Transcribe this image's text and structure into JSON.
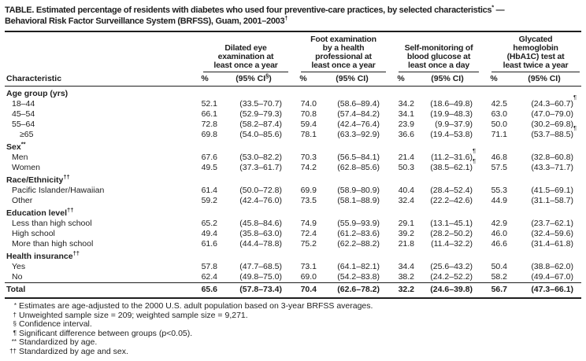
{
  "title": {
    "line1_text": "TABLE. Estimated percentage of residents with diabetes who used four preventive-care practices, by selected characteristics",
    "line1_sup": "*",
    "line1_tail": " —",
    "line2_text": "Behavioral Risk Factor Surveillance System (BRFSS), Guam, 2001–2003",
    "line2_sup": "†"
  },
  "characteristic_label": "Characteristic",
  "columns": [
    {
      "title": "Dilated eye\nexamination at\nleast once a year",
      "pct": "%",
      "ci_pre": "(95% CI",
      "ci_sup": "§",
      "ci_post": ")"
    },
    {
      "title": "Foot examination\nby a health\nprofessional at\nleast once a year",
      "pct": "%",
      "ci_pre": "(95% CI",
      "ci_sup": "",
      "ci_post": ")"
    },
    {
      "title": "Self-monitoring of\nblood glucose at\nleast once a day",
      "pct": "%",
      "ci_pre": "(95% CI",
      "ci_sup": "",
      "ci_post": ")"
    },
    {
      "title": "Glycated\nhemoglobin\n(HbA1C) test at\nleast twice a year",
      "pct": "%",
      "ci_pre": "(95% CI",
      "ci_sup": "",
      "ci_post": ")"
    }
  ],
  "rows": [
    {
      "type": "section",
      "label": "Age group (yrs)",
      "sup": ""
    },
    {
      "type": "data",
      "indent": 1,
      "label": "18–44",
      "values": [
        {
          "p": "52.1",
          "c": "(33.5–70.7)",
          "s": ""
        },
        {
          "p": "74.0",
          "c": "(58.6–89.4)",
          "s": ""
        },
        {
          "p": "34.2",
          "c": "(18.6–49.8)",
          "s": ""
        },
        {
          "p": "42.5",
          "c": "(24.3–60.7)",
          "s": "¶"
        }
      ]
    },
    {
      "type": "data",
      "indent": 1,
      "label": "45–54",
      "values": [
        {
          "p": "66.1",
          "c": "(52.9–79.3)",
          "s": ""
        },
        {
          "p": "70.8",
          "c": "(57.4–84.2)",
          "s": ""
        },
        {
          "p": "34.1",
          "c": "(19.9–48.3)",
          "s": ""
        },
        {
          "p": "63.0",
          "c": "(47.0–79.0)",
          "s": ""
        }
      ]
    },
    {
      "type": "data",
      "indent": 1,
      "label": "55–64",
      "values": [
        {
          "p": "72.8",
          "c": "(58.2–87.4)",
          "s": ""
        },
        {
          "p": "59.4",
          "c": "(42.4–76.4)",
          "s": ""
        },
        {
          "p": "23.9",
          "c": "(9.9–37.9)",
          "s": ""
        },
        {
          "p": "50.0",
          "c": "(30.2–69.8)",
          "s": ""
        }
      ]
    },
    {
      "type": "data",
      "indent": 2,
      "label": "≥65",
      "values": [
        {
          "p": "69.8",
          "c": "(54.0–85.6)",
          "s": ""
        },
        {
          "p": "78.1",
          "c": "(63.3–92.9)",
          "s": ""
        },
        {
          "p": "36.6",
          "c": "(19.4–53.8)",
          "s": ""
        },
        {
          "p": "71.1",
          "c": "(53.7–88.5)",
          "s": "¶"
        }
      ]
    },
    {
      "type": "section",
      "label": "Sex",
      "sup": "**"
    },
    {
      "type": "data",
      "indent": 1,
      "label": "Men",
      "values": [
        {
          "p": "67.6",
          "c": "(53.0–82.2)",
          "s": ""
        },
        {
          "p": "70.3",
          "c": "(56.5–84.1)",
          "s": ""
        },
        {
          "p": "21.4",
          "c": "(11.2–31.6)",
          "s": "¶"
        },
        {
          "p": "46.8",
          "c": "(32.8–60.8)",
          "s": ""
        }
      ]
    },
    {
      "type": "data",
      "indent": 1,
      "label": "Women",
      "values": [
        {
          "p": "49.5",
          "c": "(37.3–61.7)",
          "s": ""
        },
        {
          "p": "74.2",
          "c": "(62.8–85.6)",
          "s": ""
        },
        {
          "p": "50.3",
          "c": "(38.5–62.1)",
          "s": "¶"
        },
        {
          "p": "57.5",
          "c": "(43.3–71.7)",
          "s": ""
        }
      ]
    },
    {
      "type": "section",
      "label": "Race/Ethnicity",
      "sup": "††"
    },
    {
      "type": "data",
      "indent": 1,
      "label": "Pacific Islander/Hawaiian",
      "values": [
        {
          "p": "61.4",
          "c": "(50.0–72.8)",
          "s": ""
        },
        {
          "p": "69.9",
          "c": "(58.9–80.9)",
          "s": ""
        },
        {
          "p": "40.4",
          "c": "(28.4–52.4)",
          "s": ""
        },
        {
          "p": "55.3",
          "c": "(41.5–69.1)",
          "s": ""
        }
      ]
    },
    {
      "type": "data",
      "indent": 1,
      "label": "Other",
      "values": [
        {
          "p": "59.2",
          "c": "(42.4–76.0)",
          "s": ""
        },
        {
          "p": "73.5",
          "c": "(58.1–88.9)",
          "s": ""
        },
        {
          "p": "32.4",
          "c": "(22.2–42.6)",
          "s": ""
        },
        {
          "p": "44.9",
          "c": "(31.1–58.7)",
          "s": ""
        }
      ]
    },
    {
      "type": "section",
      "label": "Education level",
      "sup": "††"
    },
    {
      "type": "data",
      "indent": 1,
      "label": "Less than high school",
      "values": [
        {
          "p": "65.2",
          "c": "(45.8–84.6)",
          "s": ""
        },
        {
          "p": "74.9",
          "c": "(55.9–93.9)",
          "s": ""
        },
        {
          "p": "29.1",
          "c": "(13.1–45.1)",
          "s": ""
        },
        {
          "p": "42.9",
          "c": "(23.7–62.1)",
          "s": ""
        }
      ]
    },
    {
      "type": "data",
      "indent": 1,
      "label": "High school",
      "values": [
        {
          "p": "49.4",
          "c": "(35.8–63.0)",
          "s": ""
        },
        {
          "p": "72.4",
          "c": "(61.2–83.6)",
          "s": ""
        },
        {
          "p": "39.2",
          "c": "(28.2–50.2)",
          "s": ""
        },
        {
          "p": "46.0",
          "c": "(32.4–59.6)",
          "s": ""
        }
      ]
    },
    {
      "type": "data",
      "indent": 1,
      "label": "More than high school",
      "values": [
        {
          "p": "61.6",
          "c": "(44.4–78.8)",
          "s": ""
        },
        {
          "p": "75.2",
          "c": "(62.2–88.2)",
          "s": ""
        },
        {
          "p": "21.8",
          "c": "(11.4–32.2)",
          "s": ""
        },
        {
          "p": "46.6",
          "c": "(31.4–61.8)",
          "s": ""
        }
      ]
    },
    {
      "type": "section",
      "label": "Health insurance",
      "sup": "††"
    },
    {
      "type": "data",
      "indent": 1,
      "label": "Yes",
      "values": [
        {
          "p": "57.8",
          "c": "(47.7–68.5)",
          "s": ""
        },
        {
          "p": "73.1",
          "c": "(64.1–82.1)",
          "s": ""
        },
        {
          "p": "34.4",
          "c": "(25.6–43.2)",
          "s": ""
        },
        {
          "p": "50.4",
          "c": "(38.8–62.0)",
          "s": ""
        }
      ]
    },
    {
      "type": "data",
      "indent": 1,
      "label": "No",
      "values": [
        {
          "p": "62.4",
          "c": "(49.8–75.0)",
          "s": ""
        },
        {
          "p": "69.0",
          "c": "(54.2–83.8)",
          "s": ""
        },
        {
          "p": "38.2",
          "c": "(24.2–52.2)",
          "s": ""
        },
        {
          "p": "58.2",
          "c": "(49.4–67.0)",
          "s": ""
        }
      ]
    },
    {
      "type": "total",
      "indent": 0,
      "label": "Total",
      "values": [
        {
          "p": "65.6",
          "c": "(57.8–73.4)",
          "s": ""
        },
        {
          "p": "70.4",
          "c": "(62.6–78.2)",
          "s": ""
        },
        {
          "p": "32.2",
          "c": "(24.6–39.8)",
          "s": ""
        },
        {
          "p": "56.7",
          "c": "(47.3–66.1)",
          "s": ""
        }
      ]
    }
  ],
  "footnotes": [
    {
      "marker": "*",
      "text": "Estimates are age-adjusted to the 2000 U.S. adult population based on 3-year BRFSS averages."
    },
    {
      "marker": "†",
      "text": "Unweighted sample size = 209; weighted sample size = 9,271."
    },
    {
      "marker": "§",
      "text": "Confidence interval."
    },
    {
      "marker": "¶",
      "text": "Significant difference between groups (p<0.05)."
    },
    {
      "marker": "**",
      "text": "Standardized by age."
    },
    {
      "marker": "††",
      "text": "Standardized by age and sex."
    }
  ]
}
